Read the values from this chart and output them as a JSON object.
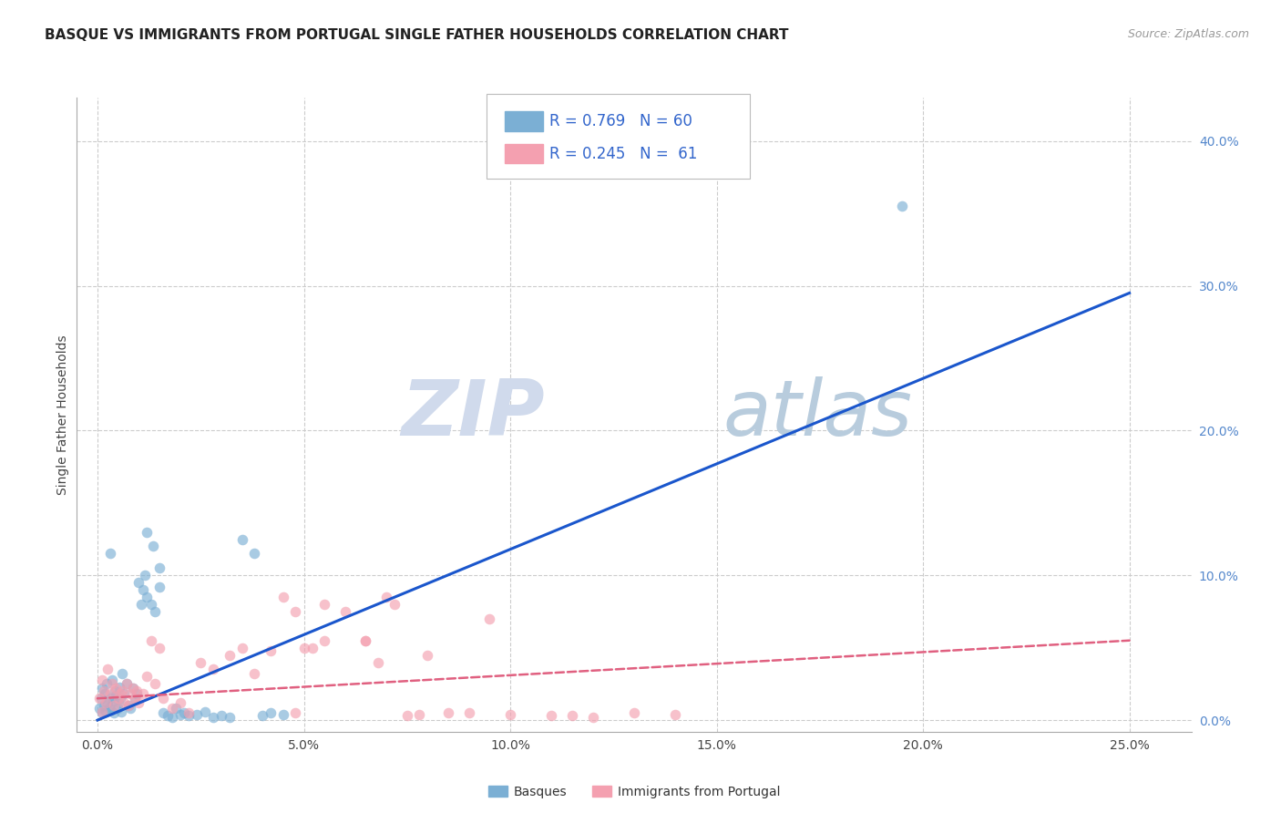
{
  "title": "BASQUE VS IMMIGRANTS FROM PORTUGAL SINGLE FATHER HOUSEHOLDS CORRELATION CHART",
  "source": "Source: ZipAtlas.com",
  "ylabel": "Single Father Households",
  "xlabel_vals": [
    0.0,
    5.0,
    10.0,
    15.0,
    20.0,
    25.0
  ],
  "ylabel_vals": [
    0.0,
    10.0,
    20.0,
    30.0,
    40.0
  ],
  "xlim": [
    -0.5,
    26.5
  ],
  "ylim": [
    -0.8,
    43.0
  ],
  "legend1_R": "0.769",
  "legend1_N": "60",
  "legend2_R": "0.245",
  "legend2_N": "61",
  "legend_label1": "Basques",
  "legend_label2": "Immigrants from Portugal",
  "blue_color": "#7BAFD4",
  "pink_color": "#F4A0B0",
  "line_blue": "#1a56cc",
  "line_pink": "#E06080",
  "title_fontsize": 11,
  "source_fontsize": 9,
  "axis_label_fontsize": 10,
  "tick_fontsize": 10,
  "blue_x": [
    0.05,
    0.08,
    0.1,
    0.12,
    0.15,
    0.18,
    0.2,
    0.22,
    0.25,
    0.28,
    0.3,
    0.32,
    0.35,
    0.38,
    0.4,
    0.42,
    0.45,
    0.48,
    0.5,
    0.52,
    0.55,
    0.58,
    0.6,
    0.65,
    0.7,
    0.75,
    0.8,
    0.85,
    0.9,
    0.95,
    1.0,
    1.05,
    1.1,
    1.15,
    1.2,
    1.3,
    1.4,
    1.5,
    1.6,
    1.7,
    1.8,
    1.9,
    2.0,
    2.1,
    2.2,
    2.4,
    2.6,
    2.8,
    3.0,
    3.2,
    3.5,
    3.8,
    4.0,
    4.2,
    4.5,
    1.2,
    1.35,
    1.5,
    19.5,
    0.3
  ],
  "blue_y": [
    0.8,
    1.5,
    0.5,
    2.2,
    1.0,
    1.8,
    0.6,
    2.5,
    1.2,
    0.9,
    1.5,
    0.7,
    2.8,
    1.3,
    0.5,
    2.0,
    1.7,
    0.8,
    1.2,
    2.3,
    1.5,
    0.6,
    3.2,
    1.8,
    2.5,
    1.0,
    0.8,
    2.2,
    1.5,
    1.8,
    9.5,
    8.0,
    9.0,
    10.0,
    8.5,
    8.0,
    7.5,
    9.2,
    0.5,
    0.3,
    0.2,
    0.8,
    0.4,
    0.5,
    0.3,
    0.4,
    0.6,
    0.2,
    0.3,
    0.2,
    12.5,
    11.5,
    0.3,
    0.5,
    0.4,
    13.0,
    12.0,
    10.5,
    35.5,
    11.5
  ],
  "pink_x": [
    0.05,
    0.1,
    0.15,
    0.2,
    0.25,
    0.3,
    0.35,
    0.4,
    0.45,
    0.5,
    0.55,
    0.6,
    0.65,
    0.7,
    0.75,
    0.8,
    0.85,
    0.9,
    0.95,
    1.0,
    1.1,
    1.2,
    1.3,
    1.4,
    1.5,
    1.6,
    1.8,
    2.0,
    2.2,
    2.5,
    2.8,
    3.2,
    3.5,
    3.8,
    4.2,
    4.8,
    5.5,
    6.0,
    6.5,
    7.0,
    7.5,
    8.0,
    9.0,
    10.0,
    11.0,
    12.0,
    13.0,
    14.0,
    5.0,
    6.5,
    7.2,
    8.5,
    5.5,
    6.8,
    4.5,
    5.2,
    4.8,
    7.8,
    9.5,
    11.5,
    0.12
  ],
  "pink_y": [
    1.5,
    2.8,
    2.0,
    1.2,
    3.5,
    1.8,
    2.5,
    1.0,
    2.2,
    1.5,
    1.8,
    2.0,
    1.2,
    2.5,
    1.0,
    1.8,
    2.2,
    1.5,
    2.0,
    1.2,
    1.8,
    3.0,
    5.5,
    2.5,
    5.0,
    1.5,
    0.8,
    1.2,
    0.5,
    4.0,
    3.5,
    4.5,
    5.0,
    3.2,
    4.8,
    0.5,
    8.0,
    7.5,
    5.5,
    8.5,
    0.3,
    4.5,
    0.5,
    0.4,
    0.3,
    0.2,
    0.5,
    0.4,
    5.0,
    5.5,
    8.0,
    0.5,
    5.5,
    4.0,
    8.5,
    5.0,
    7.5,
    0.4,
    7.0,
    0.3,
    0.6
  ],
  "blue_line_x": [
    0.0,
    25.0
  ],
  "blue_line_y": [
    0.0,
    29.5
  ],
  "pink_line_x": [
    0.0,
    25.0
  ],
  "pink_line_y": [
    1.5,
    5.5
  ],
  "grid_color": "#CCCCCC",
  "background_color": "#FFFFFF",
  "tick_color_right": "#5588CC",
  "tick_color_x": "#444444",
  "watermark_zip_color": "#D0DAEC",
  "watermark_atlas_color": "#B8CCDD"
}
